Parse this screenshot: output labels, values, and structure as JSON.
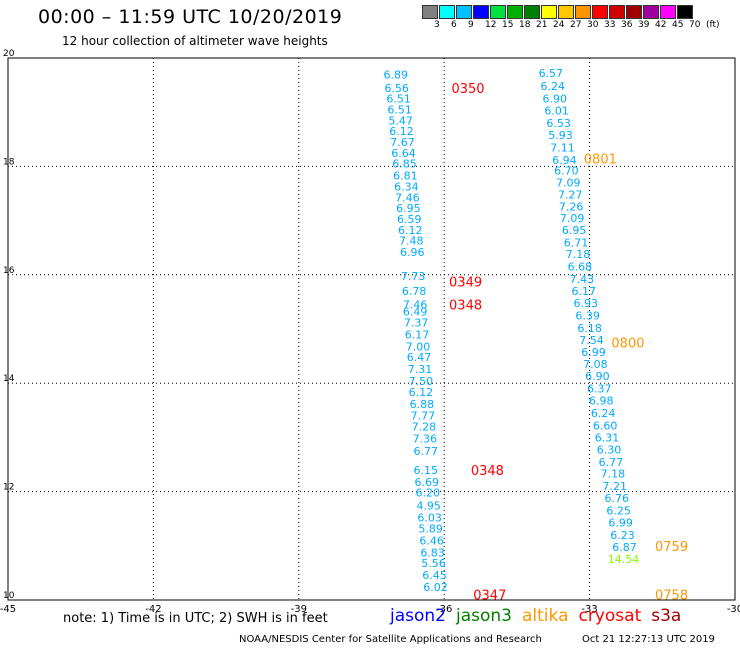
{
  "title": "00:00 – 11:59 UTC 10/20/2019",
  "subtitle": "12 hour collection of altimeter wave heights",
  "legend": {
    "labels": [
      "3",
      "6",
      "9",
      "12",
      "15",
      "18",
      "21",
      "24",
      "27",
      "30",
      "33",
      "36",
      "39",
      "42",
      "45",
      "70",
      "(ft)"
    ],
    "colors": [
      "#808080",
      "#00ffff",
      "#00bfff",
      "#0000ff",
      "#00e040",
      "#00b000",
      "#008000",
      "#ffff00",
      "#ffc800",
      "#ff9600",
      "#ff0000",
      "#d00000",
      "#a00000",
      "#a000a0",
      "#ff00ff",
      "#000000"
    ]
  },
  "colors": {
    "jason2": "#0000ff",
    "jason3": "#008000",
    "altika": "#ff9600",
    "cryosat": "#ff0000",
    "s3a": "#a00000",
    "swh_blue": "#00aaff",
    "swh_cyan": "#00e5ff",
    "swh_green": "#7fff00"
  },
  "map": {
    "lon_range": [
      -45,
      -30
    ],
    "lat_range": [
      10,
      20
    ],
    "x_ticks": [
      "-45",
      "-42",
      "-39",
      "-36",
      "-33",
      "-30"
    ],
    "y_ticks": [
      "10",
      "12",
      "14",
      "16",
      "18",
      "20"
    ],
    "grid": true
  },
  "track_times": [
    {
      "text": "0350",
      "lon": -35.85,
      "lat": 19.45,
      "sat": "cryosat"
    },
    {
      "text": "0349",
      "lon": -35.9,
      "lat": 15.88,
      "sat": "cryosat"
    },
    {
      "text": "0348",
      "lon": -35.9,
      "lat": 15.45,
      "sat": "cryosat"
    },
    {
      "text": "0348",
      "lon": -35.45,
      "lat": 12.4,
      "sat": "cryosat"
    },
    {
      "text": "0347",
      "lon": -35.4,
      "lat": 10.1,
      "sat": "cryosat"
    },
    {
      "text": "0801",
      "lon": -33.12,
      "lat": 18.15,
      "sat": "altika"
    },
    {
      "text": "0800",
      "lon": -32.55,
      "lat": 14.75,
      "sat": "altika"
    },
    {
      "text": "0759",
      "lon": -31.65,
      "lat": 11.0,
      "sat": "altika"
    },
    {
      "text": "0758",
      "lon": -31.65,
      "lat": 10.1,
      "sat": "altika"
    }
  ],
  "tracks": [
    {
      "name": "cryosat-track",
      "points": [
        {
          "lon": -37.0,
          "lat": 19.7,
          "swh": "6.89"
        },
        {
          "lon": -36.98,
          "lat": 19.45,
          "swh": "6.56"
        },
        {
          "lon": -36.94,
          "lat": 19.25,
          "swh": "6.51"
        },
        {
          "lon": -36.92,
          "lat": 19.05,
          "swh": "6.51"
        },
        {
          "lon": -36.9,
          "lat": 18.85,
          "swh": "5.47"
        },
        {
          "lon": -36.88,
          "lat": 18.65,
          "swh": "6.12"
        },
        {
          "lon": -36.86,
          "lat": 18.45,
          "swh": "7.67"
        },
        {
          "lon": -36.84,
          "lat": 18.25,
          "swh": "6.64"
        },
        {
          "lon": -36.82,
          "lat": 18.05,
          "swh": "6.85"
        },
        {
          "lon": -36.8,
          "lat": 17.83,
          "swh": "6.81"
        },
        {
          "lon": -36.78,
          "lat": 17.63,
          "swh": "6.34"
        },
        {
          "lon": -36.76,
          "lat": 17.43,
          "swh": "7.46"
        },
        {
          "lon": -36.74,
          "lat": 17.23,
          "swh": "6.95"
        },
        {
          "lon": -36.72,
          "lat": 17.03,
          "swh": "6.59"
        },
        {
          "lon": -36.7,
          "lat": 16.83,
          "swh": "6.12"
        },
        {
          "lon": -36.68,
          "lat": 16.63,
          "swh": "7.48"
        },
        {
          "lon": -36.66,
          "lat": 16.42,
          "swh": "6.96"
        },
        {
          "lon": -36.64,
          "lat": 15.98,
          "swh": "7.73"
        },
        {
          "lon": -36.62,
          "lat": 15.7,
          "swh": "6.78"
        },
        {
          "lon": -36.6,
          "lat": 15.45,
          "swh": "7.46"
        },
        {
          "lon": -36.6,
          "lat": 15.32,
          "swh": "6.49"
        },
        {
          "lon": -36.58,
          "lat": 15.12,
          "swh": "7.37"
        },
        {
          "lon": -36.56,
          "lat": 14.9,
          "swh": "6.17"
        },
        {
          "lon": -36.54,
          "lat": 14.68,
          "swh": "7.00"
        },
        {
          "lon": -36.52,
          "lat": 14.48,
          "swh": "6.47"
        },
        {
          "lon": -36.5,
          "lat": 14.26,
          "swh": "7.31"
        },
        {
          "lon": -36.48,
          "lat": 14.04,
          "swh": "7.50"
        },
        {
          "lon": -36.48,
          "lat": 13.84,
          "swh": "6.12"
        },
        {
          "lon": -36.46,
          "lat": 13.62,
          "swh": "6.88"
        },
        {
          "lon": -36.44,
          "lat": 13.4,
          "swh": "7.77"
        },
        {
          "lon": -36.42,
          "lat": 13.2,
          "swh": "7.28"
        },
        {
          "lon": -36.4,
          "lat": 12.98,
          "swh": "7.36"
        },
        {
          "lon": -36.38,
          "lat": 12.75,
          "swh": "6.77"
        },
        {
          "lon": -36.38,
          "lat": 12.4,
          "swh": "6.15"
        },
        {
          "lon": -36.36,
          "lat": 12.18,
          "swh": "6.69"
        },
        {
          "lon": -36.34,
          "lat": 11.98,
          "swh": "6.20"
        },
        {
          "lon": -36.32,
          "lat": 11.74,
          "swh": "4.95"
        },
        {
          "lon": -36.3,
          "lat": 11.52,
          "swh": "6.03"
        },
        {
          "lon": -36.28,
          "lat": 11.32,
          "swh": "5.89"
        },
        {
          "lon": -36.26,
          "lat": 11.1,
          "swh": "6.46"
        },
        {
          "lon": -36.24,
          "lat": 10.88,
          "swh": "6.83"
        },
        {
          "lon": -36.22,
          "lat": 10.68,
          "swh": "5.56"
        },
        {
          "lon": -36.2,
          "lat": 10.46,
          "swh": "6.45"
        },
        {
          "lon": -36.18,
          "lat": 10.24,
          "swh": "6.02"
        }
      ]
    },
    {
      "name": "altika-track",
      "points": [
        {
          "lon": -33.8,
          "lat": 19.72,
          "swh": "6.57"
        },
        {
          "lon": -33.76,
          "lat": 19.48,
          "swh": "6.24"
        },
        {
          "lon": -33.72,
          "lat": 19.25,
          "swh": "6.90"
        },
        {
          "lon": -33.68,
          "lat": 19.03,
          "swh": "6.01"
        },
        {
          "lon": -33.64,
          "lat": 18.8,
          "swh": "6.53"
        },
        {
          "lon": -33.6,
          "lat": 18.58,
          "swh": "5.93"
        },
        {
          "lon": -33.56,
          "lat": 18.35,
          "swh": "7.11"
        },
        {
          "lon": -33.52,
          "lat": 18.12,
          "swh": "6.94"
        },
        {
          "lon": -33.48,
          "lat": 17.92,
          "swh": "6.70"
        },
        {
          "lon": -33.44,
          "lat": 17.7,
          "swh": "7.09"
        },
        {
          "lon": -33.4,
          "lat": 17.48,
          "swh": "7.27"
        },
        {
          "lon": -33.38,
          "lat": 17.26,
          "swh": "7.26"
        },
        {
          "lon": -33.36,
          "lat": 17.05,
          "swh": "7.09"
        },
        {
          "lon": -33.32,
          "lat": 16.83,
          "swh": "6.95"
        },
        {
          "lon": -33.28,
          "lat": 16.6,
          "swh": "6.71"
        },
        {
          "lon": -33.24,
          "lat": 16.38,
          "swh": "7.18"
        },
        {
          "lon": -33.2,
          "lat": 16.15,
          "swh": "6.68"
        },
        {
          "lon": -33.16,
          "lat": 15.92,
          "swh": "7.43"
        },
        {
          "lon": -33.12,
          "lat": 15.7,
          "swh": "6.17"
        },
        {
          "lon": -33.08,
          "lat": 15.48,
          "swh": "6.93"
        },
        {
          "lon": -33.04,
          "lat": 15.25,
          "swh": "6.39"
        },
        {
          "lon": -33.0,
          "lat": 15.02,
          "swh": "6.18"
        },
        {
          "lon": -32.96,
          "lat": 14.8,
          "swh": "7.54"
        },
        {
          "lon": -32.92,
          "lat": 14.58,
          "swh": "6.99"
        },
        {
          "lon": -32.88,
          "lat": 14.35,
          "swh": "7.08"
        },
        {
          "lon": -32.84,
          "lat": 14.13,
          "swh": "6.90"
        },
        {
          "lon": -32.8,
          "lat": 13.9,
          "swh": "6.37"
        },
        {
          "lon": -32.76,
          "lat": 13.68,
          "swh": "6.98"
        },
        {
          "lon": -32.72,
          "lat": 13.45,
          "swh": "6.24"
        },
        {
          "lon": -32.68,
          "lat": 13.22,
          "swh": "6.60"
        },
        {
          "lon": -32.64,
          "lat": 13.0,
          "swh": "6.31"
        },
        {
          "lon": -32.6,
          "lat": 12.78,
          "swh": "6.30"
        },
        {
          "lon": -32.56,
          "lat": 12.55,
          "swh": "6.77"
        },
        {
          "lon": -32.52,
          "lat": 12.33,
          "swh": "7.18"
        },
        {
          "lon": -32.48,
          "lat": 12.1,
          "swh": "7.21"
        },
        {
          "lon": -32.44,
          "lat": 11.88,
          "swh": "6.76"
        },
        {
          "lon": -32.4,
          "lat": 11.65,
          "swh": "6.25"
        },
        {
          "lon": -32.36,
          "lat": 11.43,
          "swh": "6.99"
        },
        {
          "lon": -32.32,
          "lat": 11.2,
          "swh": "6.23"
        },
        {
          "lon": -32.28,
          "lat": 10.98,
          "swh": "6.87"
        },
        {
          "lon": -32.3,
          "lat": 10.76,
          "swh": "14.54",
          "color": "swh_green"
        }
      ]
    }
  ],
  "note": "note:  1) Time is in UTC;  2) SWH is in feet",
  "satellites": [
    {
      "label": "jason2",
      "color": "#0000ff"
    },
    {
      "label": "jason3",
      "color": "#008000"
    },
    {
      "label": "altika",
      "color": "#ff9600"
    },
    {
      "label": "cryosat",
      "color": "#ff0000"
    },
    {
      "label": "s3a",
      "color": "#a00000"
    }
  ],
  "footer_left": "NOAA/NESDIS Center for Satellite Applications and Research",
  "footer_right": "Oct 21 12:27:13 UTC 2019"
}
